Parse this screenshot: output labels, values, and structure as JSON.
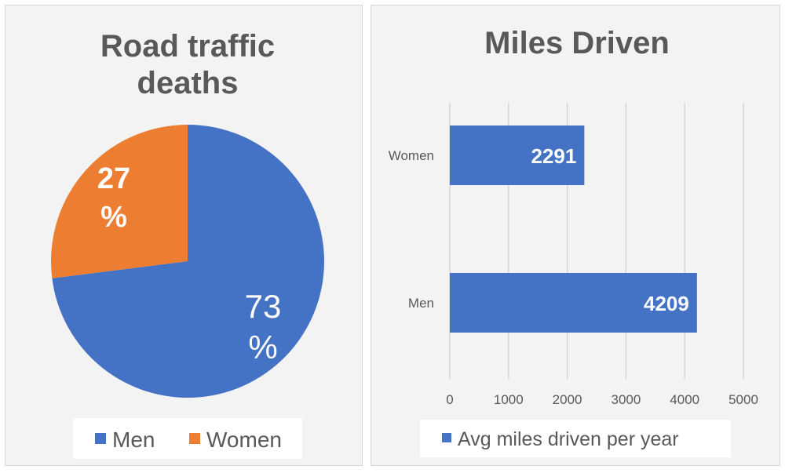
{
  "colors": {
    "men": "#4472c4",
    "women": "#ed7d31",
    "panel_bg": "#f3f3f3",
    "grid": "#d0d0d0",
    "title": "#595959"
  },
  "chart_data": [
    {
      "type": "pie",
      "title_lines": [
        "Road traffic",
        "deaths"
      ],
      "slices": [
        {
          "label": "Men",
          "value": 73,
          "display_lines": [
            "73",
            "%"
          ]
        },
        {
          "label": "Women",
          "value": 27,
          "display_lines": [
            "27",
            "%"
          ]
        }
      ],
      "legend": {
        "placement": "bottom",
        "entries": [
          "Men",
          "Women"
        ]
      }
    },
    {
      "type": "bar",
      "orientation": "horizontal",
      "title": "Miles Driven",
      "categories": [
        "Women",
        "Men"
      ],
      "series": [
        {
          "name": "Avg miles driven per year",
          "values": [
            2291,
            4209
          ]
        }
      ],
      "xlim": [
        0,
        5000
      ],
      "xticks": [
        "0",
        "1000",
        "2000",
        "3000",
        "4000",
        "5000"
      ],
      "xtick_values": [
        0,
        1000,
        2000,
        3000,
        4000,
        5000
      ],
      "grid": true,
      "legend": {
        "placement": "bottom",
        "entries": [
          "Avg miles driven per year"
        ]
      }
    }
  ]
}
